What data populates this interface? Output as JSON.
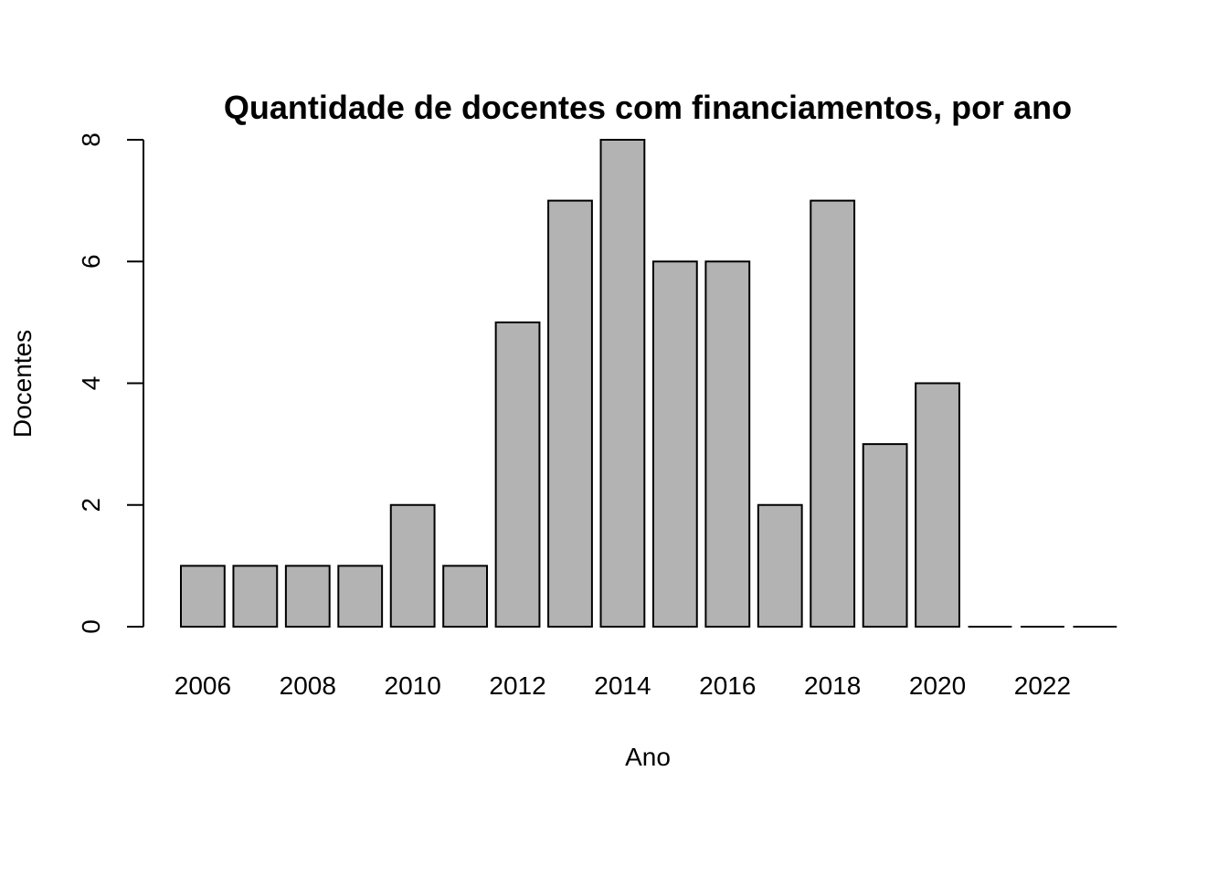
{
  "chart_data": {
    "type": "bar",
    "title": "Quantidade de docentes com financiamentos, por ano",
    "xlabel": "Ano",
    "ylabel": "Docentes",
    "categories": [
      "2006",
      "2007",
      "2008",
      "2009",
      "2010",
      "2011",
      "2012",
      "2013",
      "2014",
      "2015",
      "2016",
      "2017",
      "2018",
      "2019",
      "2020",
      "2021",
      "2022",
      "2023"
    ],
    "values": [
      1,
      1,
      1,
      1,
      2,
      1,
      5,
      7,
      8,
      6,
      6,
      2,
      7,
      3,
      4,
      0,
      0,
      0
    ],
    "x_tick_labels": [
      "2006",
      "2008",
      "2010",
      "2012",
      "2014",
      "2016",
      "2018",
      "2020",
      "2022"
    ],
    "y_ticks": [
      "0",
      "2",
      "4",
      "6",
      "8"
    ],
    "ylim": [
      0,
      8
    ],
    "grid": false,
    "legend": "none",
    "bar_color": "#b3b3b3",
    "bar_edge_color": "#000000"
  }
}
